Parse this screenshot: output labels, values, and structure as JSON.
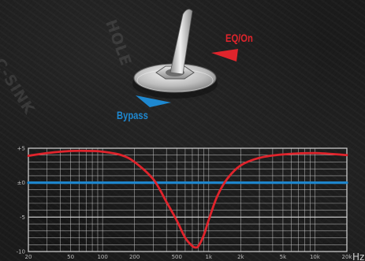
{
  "switch": {
    "on_label": "EQ/On",
    "bypass_label": "Bypass",
    "watermark_left": "C-SINK",
    "watermark_top": "HOLE"
  },
  "chart_data": {
    "type": "line",
    "title": "",
    "xlabel": "",
    "ylabel": "",
    "x_unit_label": "Hz",
    "x_scale": "log",
    "xlim": [
      20,
      20000
    ],
    "ylim": [
      -10,
      5
    ],
    "x_ticks": [
      {
        "value": 20,
        "label": "20"
      },
      {
        "value": 50,
        "label": "50"
      },
      {
        "value": 100,
        "label": "100"
      },
      {
        "value": 200,
        "label": "200"
      },
      {
        "value": 500,
        "label": "500"
      },
      {
        "value": 1000,
        "label": "1k"
      },
      {
        "value": 2000,
        "label": "2k"
      },
      {
        "value": 5000,
        "label": "5k"
      },
      {
        "value": 10000,
        "label": "10k"
      },
      {
        "value": 20000,
        "label": "20k"
      }
    ],
    "y_ticks": [
      {
        "value": 5,
        "label": "+5"
      },
      {
        "value": 0,
        "label": "±0"
      },
      {
        "value": -5,
        "label": "-5"
      },
      {
        "value": -10,
        "label": "-10"
      }
    ],
    "grid": true,
    "series": [
      {
        "color": "#e0242c",
        "x": [
          20,
          30,
          50,
          80,
          100,
          150,
          200,
          300,
          400,
          500,
          600,
          700,
          750,
          800,
          900,
          1000,
          1200,
          1500,
          2000,
          3000,
          5000,
          10000,
          20000
        ],
        "y": [
          3.9,
          4.3,
          4.6,
          4.6,
          4.5,
          4.0,
          3.0,
          0.5,
          -2.8,
          -5.5,
          -8.0,
          -9.2,
          -9.4,
          -9.2,
          -7.6,
          -5.4,
          -2.0,
          0.6,
          2.5,
          3.6,
          4.1,
          4.3,
          4.0
        ]
      },
      {
        "color": "#1e88d0",
        "x": [
          20,
          20000
        ],
        "y": [
          0,
          0
        ]
      }
    ]
  },
  "colors": {
    "red": "#e0242c",
    "blue": "#1e88d0",
    "grid": "#d6d6d6",
    "background": "#1b1b1b"
  }
}
